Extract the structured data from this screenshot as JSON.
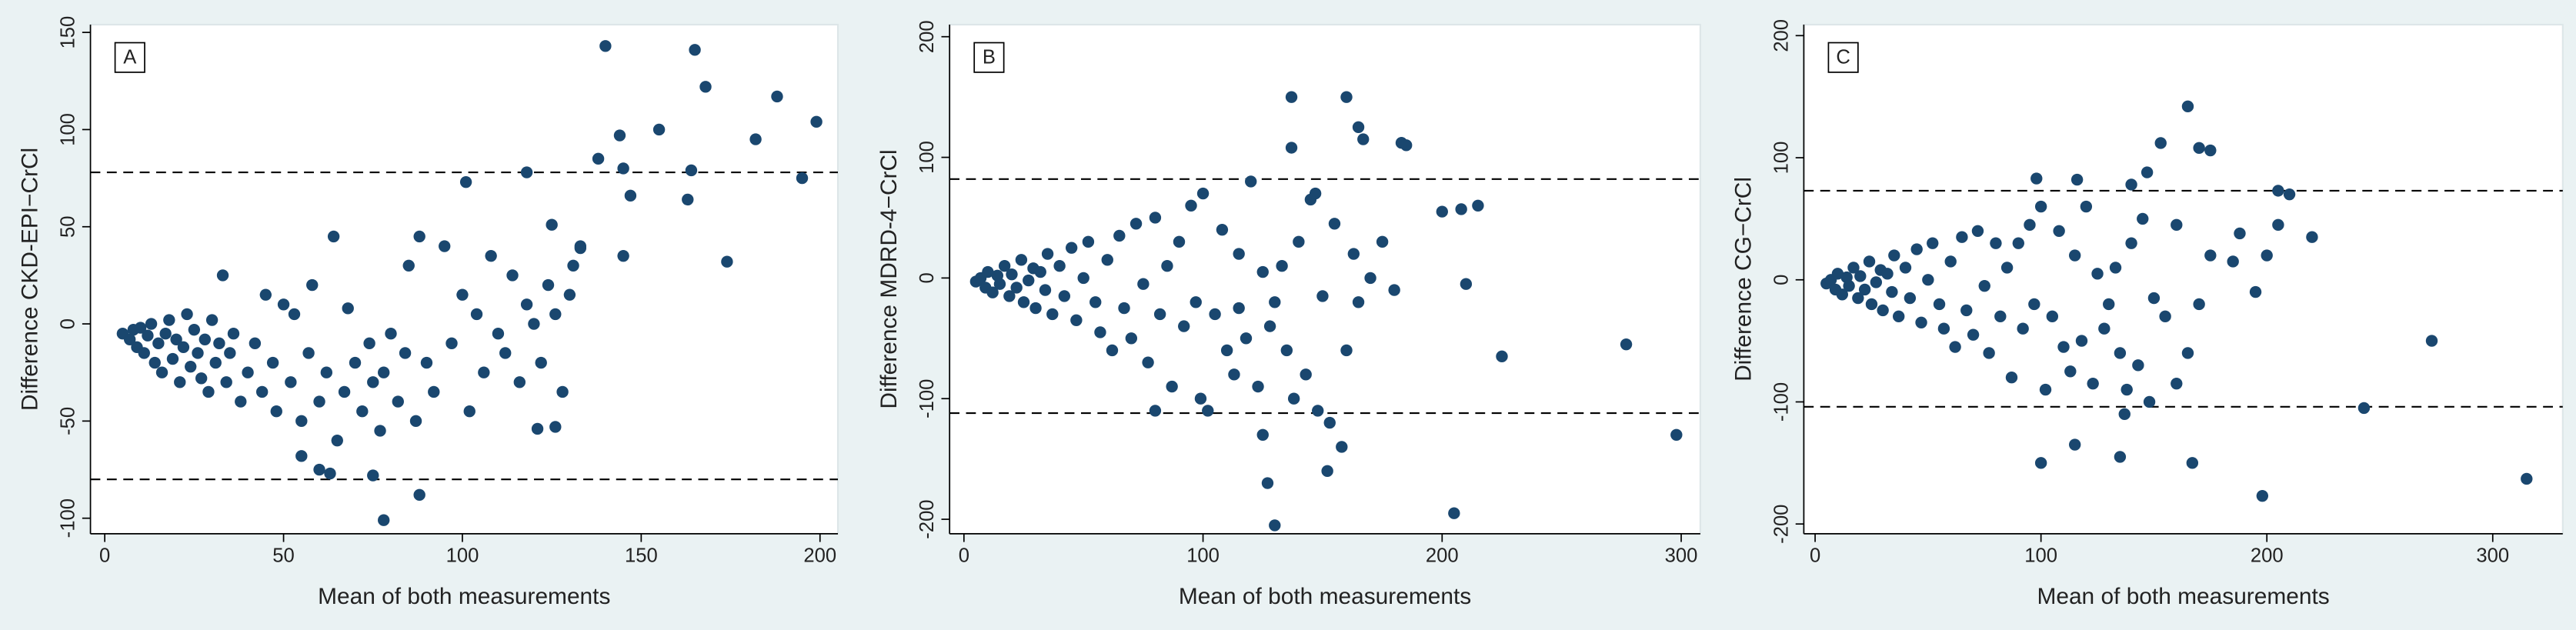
{
  "chart_data": [
    {
      "type": "scatter",
      "label": "A",
      "xlabel": "Mean of both measurements",
      "ylabel": "Difference CKD-EPI−CrCl",
      "xlim": [
        -4,
        205
      ],
      "ylim": [
        -108,
        154
      ],
      "xticks": [
        0,
        50,
        100,
        150,
        200
      ],
      "yticks": [
        -100,
        -50,
        0,
        50,
        100,
        150
      ],
      "hlines": [
        78,
        -80
      ],
      "color": "#1a476f",
      "x": [
        5,
        7,
        8,
        9,
        10,
        11,
        12,
        13,
        14,
        15,
        16,
        17,
        18,
        19,
        20,
        21,
        22,
        23,
        24,
        25,
        26,
        27,
        28,
        29,
        30,
        31,
        32,
        33,
        34,
        35,
        36,
        38,
        40,
        42,
        44,
        45,
        47,
        48,
        50,
        52,
        53,
        55,
        57,
        58,
        60,
        62,
        64,
        65,
        67,
        68,
        70,
        72,
        74,
        75,
        77,
        78,
        80,
        82,
        84,
        85,
        87,
        88,
        90,
        92,
        95,
        97,
        100,
        102,
        104,
        106,
        108,
        110,
        112,
        114,
        116,
        118,
        120,
        122,
        124,
        126,
        128,
        130,
        133,
        101,
        118,
        125,
        131,
        133,
        138,
        140,
        144,
        145,
        145,
        147,
        155,
        163,
        164,
        165,
        168,
        174,
        182,
        188,
        195,
        199,
        78,
        88,
        63,
        60,
        55,
        75,
        121,
        126
      ],
      "values": [
        -5,
        -8,
        -3,
        -12,
        -2,
        -15,
        -6,
        0,
        -20,
        -10,
        -25,
        -5,
        2,
        -18,
        -8,
        -30,
        -12,
        5,
        -22,
        -3,
        -15,
        -28,
        -8,
        -35,
        2,
        -20,
        -10,
        25,
        -30,
        -15,
        -5,
        -40,
        -25,
        -10,
        -35,
        15,
        -20,
        -45,
        10,
        -30,
        5,
        -50,
        -15,
        20,
        -40,
        -25,
        45,
        -60,
        -35,
        8,
        -20,
        -45,
        -10,
        -30,
        -55,
        -25,
        -5,
        -40,
        -15,
        30,
        -50,
        45,
        -20,
        -35,
        40,
        -10,
        15,
        -45,
        5,
        -25,
        35,
        -5,
        -15,
        25,
        -30,
        10,
        0,
        -20,
        20,
        5,
        -35,
        15,
        40,
        73,
        78,
        51,
        30,
        39,
        85,
        143,
        97,
        80,
        35,
        66,
        100,
        64,
        79,
        141,
        122,
        32,
        95,
        117,
        75,
        104,
        -101,
        -88,
        -77,
        -75,
        -68,
        -78,
        -54,
        -53
      ]
    },
    {
      "type": "scatter",
      "label": "B",
      "xlabel": "Mean of both measurements",
      "ylabel": "Difference MDRD-4−CrCl",
      "xlim": [
        -6,
        308
      ],
      "ylim": [
        -212,
        210
      ],
      "xticks": [
        0,
        100,
        200,
        300
      ],
      "yticks": [
        -200,
        -100,
        0,
        100,
        200
      ],
      "hlines": [
        82,
        -112
      ],
      "color": "#1a476f",
      "x": [
        5,
        7,
        9,
        10,
        12,
        14,
        15,
        17,
        19,
        20,
        22,
        24,
        25,
        27,
        29,
        30,
        32,
        34,
        35,
        37,
        40,
        42,
        45,
        47,
        50,
        52,
        55,
        57,
        60,
        62,
        65,
        67,
        70,
        72,
        75,
        77,
        80,
        82,
        85,
        87,
        90,
        92,
        95,
        97,
        100,
        102,
        105,
        108,
        110,
        113,
        115,
        118,
        120,
        123,
        125,
        128,
        130,
        133,
        135,
        138,
        140,
        143,
        145,
        148,
        150,
        153,
        155,
        158,
        160,
        163,
        165,
        170,
        175,
        180,
        185,
        200,
        205,
        210,
        215,
        225,
        277,
        298,
        137,
        160,
        165,
        167,
        183,
        115,
        99,
        80,
        125,
        130,
        147,
        152,
        137,
        127,
        208
      ],
      "values": [
        -3,
        0,
        -8,
        5,
        -12,
        2,
        -5,
        10,
        -15,
        3,
        -8,
        15,
        -20,
        -2,
        8,
        -25,
        5,
        -10,
        20,
        -30,
        10,
        -15,
        25,
        -35,
        0,
        30,
        -20,
        -45,
        15,
        -60,
        35,
        -25,
        -50,
        45,
        -5,
        -70,
        50,
        -30,
        10,
        -90,
        30,
        -40,
        60,
        -20,
        70,
        -110,
        -30,
        40,
        -60,
        -80,
        20,
        -50,
        80,
        -90,
        5,
        -40,
        -20,
        10,
        -60,
        -100,
        30,
        -80,
        65,
        -110,
        -15,
        -120,
        45,
        -140,
        -60,
        20,
        -20,
        0,
        30,
        -10,
        110,
        55,
        -195,
        -5,
        60,
        -65,
        -55,
        -130,
        150,
        150,
        125,
        115,
        112,
        -25,
        -100,
        -110,
        -130,
        -205,
        70,
        -160,
        108,
        -170,
        57
      ]
    },
    {
      "type": "scatter",
      "label": "C",
      "xlabel": "Mean of both measurements",
      "ylabel": "Difference CG−CrCl",
      "xlim": [
        -5,
        331
      ],
      "ylim": [
        -208,
        209
      ],
      "xticks": [
        0,
        100,
        200,
        300
      ],
      "yticks": [
        -200,
        -100,
        0,
        100,
        200
      ],
      "hlines": [
        73,
        -104
      ],
      "color": "#1a476f",
      "x": [
        5,
        7,
        9,
        10,
        12,
        14,
        15,
        17,
        19,
        20,
        22,
        24,
        25,
        27,
        29,
        30,
        32,
        34,
        35,
        37,
        40,
        42,
        45,
        47,
        50,
        52,
        55,
        57,
        60,
        62,
        65,
        67,
        70,
        72,
        75,
        77,
        80,
        82,
        85,
        87,
        90,
        92,
        95,
        97,
        100,
        102,
        105,
        108,
        110,
        113,
        115,
        118,
        120,
        123,
        125,
        128,
        130,
        133,
        135,
        138,
        140,
        143,
        145,
        148,
        150,
        155,
        160,
        165,
        170,
        175,
        185,
        195,
        200,
        165,
        170,
        175,
        153,
        98,
        116,
        140,
        147,
        205,
        210,
        220,
        188,
        205,
        243,
        273,
        315,
        198,
        167,
        100,
        115,
        135,
        137,
        160
      ],
      "values": [
        -3,
        0,
        -8,
        5,
        -12,
        2,
        -5,
        10,
        -15,
        3,
        -8,
        15,
        -20,
        -2,
        8,
        -25,
        5,
        -10,
        20,
        -30,
        10,
        -15,
        25,
        -35,
        0,
        30,
        -20,
        -40,
        15,
        -55,
        35,
        -25,
        -45,
        40,
        -5,
        -60,
        30,
        -30,
        10,
        -80,
        30,
        -40,
        45,
        -20,
        60,
        -90,
        -30,
        40,
        -55,
        -75,
        20,
        -50,
        60,
        -85,
        5,
        -40,
        -20,
        10,
        -60,
        -90,
        30,
        -70,
        50,
        -100,
        -15,
        -30,
        45,
        -60,
        -20,
        20,
        15,
        -10,
        20,
        142,
        108,
        106,
        112,
        83,
        82,
        78,
        88,
        73,
        70,
        35,
        38,
        45,
        -105,
        -50,
        -163,
        -177,
        -150,
        -150,
        -135,
        -145,
        -110,
        -85
      ]
    }
  ]
}
